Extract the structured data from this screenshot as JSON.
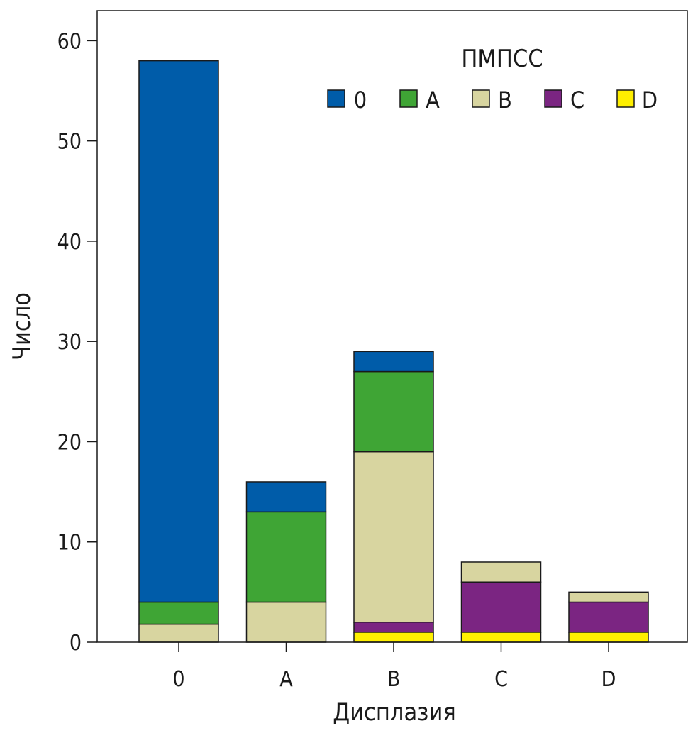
{
  "chart_data": {
    "type": "bar",
    "stacked": true,
    "categories": [
      "0",
      "A",
      "B",
      "C",
      "D"
    ],
    "xlabel": "Дисплазия",
    "ylabel": "Число",
    "ylim": [
      0,
      63
    ],
    "yticks": [
      0,
      10,
      20,
      30,
      40,
      50,
      60
    ],
    "grid": false,
    "legend": {
      "title": "ПМПСС",
      "placement": "top-right"
    },
    "series": [
      {
        "name": "D",
        "color": "#ffef00",
        "values": [
          0,
          0,
          1,
          1,
          1
        ]
      },
      {
        "name": "C",
        "color": "#7b2582",
        "values": [
          0,
          0,
          1,
          5,
          3
        ]
      },
      {
        "name": "B",
        "color": "#d8d5a0",
        "values": [
          1.8,
          4,
          17,
          2,
          1
        ]
      },
      {
        "name": "A",
        "color": "#3fa535",
        "values": [
          2.2,
          9,
          8,
          0,
          0
        ]
      },
      {
        "name": "0",
        "color": "#005ca9",
        "values": [
          54,
          3,
          2,
          0,
          0
        ]
      }
    ],
    "legend_order": [
      "0",
      "A",
      "B",
      "C",
      "D"
    ]
  }
}
